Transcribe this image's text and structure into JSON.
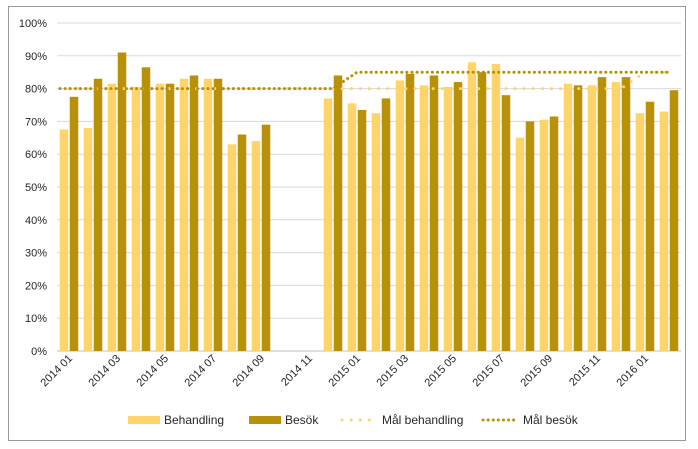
{
  "chart_data": {
    "type": "bar",
    "title": "",
    "xlabel": "",
    "ylabel": "",
    "ylim": [
      0,
      100
    ],
    "y_ticks": [
      "0%",
      "10%",
      "20%",
      "30%",
      "40%",
      "50%",
      "60%",
      "70%",
      "80%",
      "90%",
      "100%"
    ],
    "categories": [
      "2014 01",
      "2014 02",
      "2014 03",
      "2014 04",
      "2014 05",
      "2014 06",
      "2014 07",
      "2014 08",
      "2014 09",
      "2014 10",
      "2014 11",
      "2014 12",
      "2015 01",
      "2015 02",
      "2015 03",
      "2015 04",
      "2015 05",
      "2015 06",
      "2015 07",
      "2015 08",
      "2015 09",
      "2015 10",
      "2015 11",
      "2015 12",
      "2016 01",
      "2016 02"
    ],
    "x_tick_labels": [
      "2014 01",
      "",
      "2014 03",
      "",
      "2014 05",
      "",
      "2014 07",
      "",
      "2014 09",
      "",
      "2014 11",
      "",
      "2015 01",
      "",
      "2015 03",
      "",
      "2015 05",
      "",
      "2015 07",
      "",
      "2015 09",
      "",
      "2015 11",
      "",
      "2016 01",
      ""
    ],
    "series": [
      {
        "name": "Behandling",
        "kind": "bar",
        "color": "#FFD56B",
        "values": [
          67.5,
          68,
          81.5,
          80.5,
          81.5,
          83,
          83,
          63,
          64,
          null,
          null,
          77,
          75.5,
          72.5,
          82.5,
          81,
          80.5,
          88,
          87.5,
          65,
          70.5,
          81.5,
          81,
          82,
          72.5,
          73
        ]
      },
      {
        "name": "Besök",
        "kind": "bar",
        "color": "#B8900A",
        "values": [
          77.5,
          83,
          91,
          86.5,
          81.5,
          84,
          83,
          66,
          69,
          null,
          null,
          84,
          73.5,
          77,
          84.5,
          84,
          82,
          85,
          78,
          70,
          71.5,
          81,
          83.5,
          83.5,
          76,
          79.5
        ]
      },
      {
        "name": "Mål behandling",
        "kind": "dotted-line",
        "color": "#FFD56B",
        "values": [
          80,
          80,
          80,
          80,
          80,
          80,
          80,
          80,
          80,
          80,
          80,
          80,
          80,
          80,
          80,
          80,
          80,
          80,
          80,
          80,
          80,
          80,
          80,
          80,
          85,
          85
        ]
      },
      {
        "name": "Mål besök",
        "kind": "dotted-line",
        "color": "#B8900A",
        "values": [
          80,
          80,
          80,
          80,
          80,
          80,
          80,
          80,
          80,
          80,
          80,
          80,
          85,
          85,
          85,
          85,
          85,
          85,
          85,
          85,
          85,
          85,
          85,
          85,
          85,
          85
        ]
      }
    ],
    "legend_position": "bottom",
    "grid": true
  }
}
